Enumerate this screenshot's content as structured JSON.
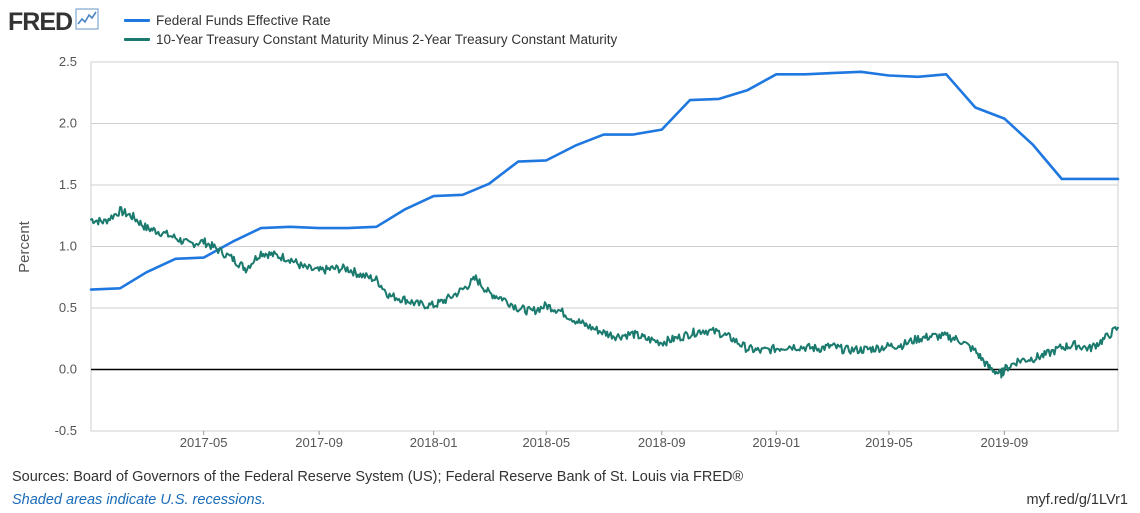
{
  "logo": {
    "text": "FRED"
  },
  "colors": {
    "fedfunds": "#1f77e0",
    "spread": "#1a7a6d",
    "zero_line": "#000000",
    "grid": "#cfcfcf"
  },
  "footer": {
    "sources": "Sources: Board of Governors of the Federal Reserve System (US); Federal Reserve Bank of St. Louis via FRED®",
    "note": "Shaded areas indicate U.S. recessions.",
    "link": "myf.red/g/1LVr1"
  },
  "chart_data": {
    "type": "line",
    "ylabel": "Percent",
    "xlabel": "",
    "ylim": [
      -0.5,
      2.5
    ],
    "xlim": [
      "2017-01-01",
      "2019-12-31"
    ],
    "yticks": [
      "2.5",
      "2.0",
      "1.5",
      "1.0",
      "0.5",
      "0.0",
      "-0.5"
    ],
    "xticks": [
      {
        "date": "2017-05-01",
        "label": "2017-05"
      },
      {
        "date": "2017-09-01",
        "label": "2017-09"
      },
      {
        "date": "2018-01-01",
        "label": "2018-01"
      },
      {
        "date": "2018-05-01",
        "label": "2018-05"
      },
      {
        "date": "2018-09-01",
        "label": "2018-09"
      },
      {
        "date": "2019-01-01",
        "label": "2019-01"
      },
      {
        "date": "2019-05-01",
        "label": "2019-05"
      },
      {
        "date": "2019-09-01",
        "label": "2019-09"
      }
    ],
    "grid": true,
    "legend_position": "top-left",
    "series": [
      {
        "name": "Federal Funds Effective Rate",
        "color": "#1f77e0",
        "style": "monthly",
        "points": [
          [
            "2017-01-01",
            0.65
          ],
          [
            "2017-02-01",
            0.66
          ],
          [
            "2017-03-01",
            0.79
          ],
          [
            "2017-04-01",
            0.9
          ],
          [
            "2017-05-01",
            0.91
          ],
          [
            "2017-06-01",
            1.04
          ],
          [
            "2017-07-01",
            1.15
          ],
          [
            "2017-08-01",
            1.16
          ],
          [
            "2017-09-01",
            1.15
          ],
          [
            "2017-10-01",
            1.15
          ],
          [
            "2017-11-01",
            1.16
          ],
          [
            "2017-12-01",
            1.3
          ],
          [
            "2018-01-01",
            1.41
          ],
          [
            "2018-02-01",
            1.42
          ],
          [
            "2018-03-01",
            1.51
          ],
          [
            "2018-04-01",
            1.69
          ],
          [
            "2018-05-01",
            1.7
          ],
          [
            "2018-06-01",
            1.82
          ],
          [
            "2018-07-01",
            1.91
          ],
          [
            "2018-08-01",
            1.91
          ],
          [
            "2018-09-01",
            1.95
          ],
          [
            "2018-10-01",
            2.19
          ],
          [
            "2018-11-01",
            2.2
          ],
          [
            "2018-12-01",
            2.27
          ],
          [
            "2019-01-01",
            2.4
          ],
          [
            "2019-02-01",
            2.4
          ],
          [
            "2019-03-01",
            2.41
          ],
          [
            "2019-04-01",
            2.42
          ],
          [
            "2019-05-01",
            2.39
          ],
          [
            "2019-06-01",
            2.38
          ],
          [
            "2019-07-01",
            2.4
          ],
          [
            "2019-08-01",
            2.13
          ],
          [
            "2019-09-01",
            2.04
          ],
          [
            "2019-10-01",
            1.83
          ],
          [
            "2019-11-01",
            1.55
          ],
          [
            "2019-12-01",
            1.55
          ],
          [
            "2019-12-31",
            1.55
          ]
        ]
      },
      {
        "name": "10-Year Treasury Constant Maturity Minus 2-Year Treasury Constant Maturity",
        "color": "#1a7a6d",
        "style": "daily",
        "points": [
          [
            "2017-01-01",
            1.22
          ],
          [
            "2017-01-15",
            1.2
          ],
          [
            "2017-02-01",
            1.29
          ],
          [
            "2017-02-15",
            1.24
          ],
          [
            "2017-03-01",
            1.15
          ],
          [
            "2017-03-15",
            1.12
          ],
          [
            "2017-04-01",
            1.07
          ],
          [
            "2017-04-15",
            1.02
          ],
          [
            "2017-05-01",
            1.04
          ],
          [
            "2017-05-15",
            0.98
          ],
          [
            "2017-06-01",
            0.9
          ],
          [
            "2017-06-15",
            0.82
          ],
          [
            "2017-07-01",
            0.95
          ],
          [
            "2017-07-15",
            0.93
          ],
          [
            "2017-08-01",
            0.9
          ],
          [
            "2017-08-15",
            0.83
          ],
          [
            "2017-09-01",
            0.8
          ],
          [
            "2017-09-15",
            0.82
          ],
          [
            "2017-10-01",
            0.82
          ],
          [
            "2017-10-15",
            0.77
          ],
          [
            "2017-11-01",
            0.73
          ],
          [
            "2017-11-15",
            0.6
          ],
          [
            "2017-12-01",
            0.57
          ],
          [
            "2017-12-15",
            0.53
          ],
          [
            "2018-01-01",
            0.52
          ],
          [
            "2018-01-15",
            0.57
          ],
          [
            "2018-02-01",
            0.65
          ],
          [
            "2018-02-15",
            0.74
          ],
          [
            "2018-03-01",
            0.62
          ],
          [
            "2018-03-15",
            0.58
          ],
          [
            "2018-04-01",
            0.5
          ],
          [
            "2018-04-15",
            0.47
          ],
          [
            "2018-05-01",
            0.52
          ],
          [
            "2018-05-15",
            0.48
          ],
          [
            "2018-06-01",
            0.4
          ],
          [
            "2018-06-15",
            0.35
          ],
          [
            "2018-07-01",
            0.3
          ],
          [
            "2018-07-15",
            0.27
          ],
          [
            "2018-08-01",
            0.29
          ],
          [
            "2018-08-15",
            0.25
          ],
          [
            "2018-09-01",
            0.22
          ],
          [
            "2018-09-15",
            0.25
          ],
          [
            "2018-10-01",
            0.29
          ],
          [
            "2018-10-15",
            0.32
          ],
          [
            "2018-11-01",
            0.3
          ],
          [
            "2018-11-15",
            0.25
          ],
          [
            "2018-12-01",
            0.17
          ],
          [
            "2018-12-15",
            0.15
          ],
          [
            "2019-01-01",
            0.17
          ],
          [
            "2019-01-15",
            0.19
          ],
          [
            "2019-02-01",
            0.18
          ],
          [
            "2019-02-15",
            0.17
          ],
          [
            "2019-03-01",
            0.19
          ],
          [
            "2019-03-15",
            0.16
          ],
          [
            "2019-04-01",
            0.16
          ],
          [
            "2019-04-15",
            0.17
          ],
          [
            "2019-05-01",
            0.19
          ],
          [
            "2019-05-15",
            0.2
          ],
          [
            "2019-06-01",
            0.25
          ],
          [
            "2019-06-15",
            0.27
          ],
          [
            "2019-07-01",
            0.27
          ],
          [
            "2019-07-15",
            0.24
          ],
          [
            "2019-08-01",
            0.15
          ],
          [
            "2019-08-15",
            0.02
          ],
          [
            "2019-08-28",
            -0.04
          ],
          [
            "2019-09-01",
            0.0
          ],
          [
            "2019-09-15",
            0.07
          ],
          [
            "2019-10-01",
            0.09
          ],
          [
            "2019-10-15",
            0.12
          ],
          [
            "2019-11-01",
            0.18
          ],
          [
            "2019-11-15",
            0.2
          ],
          [
            "2019-12-01",
            0.17
          ],
          [
            "2019-12-15",
            0.24
          ],
          [
            "2019-12-31",
            0.34
          ]
        ]
      }
    ]
  }
}
